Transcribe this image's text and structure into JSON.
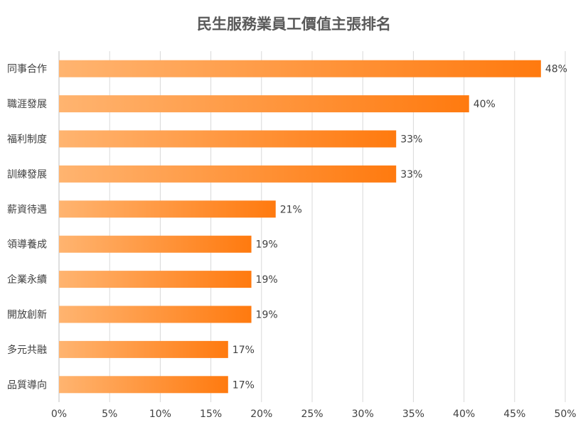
{
  "chart_data": {
    "type": "bar",
    "orientation": "horizontal",
    "title": "民生服務業員工價值主張排名",
    "xlabel": "",
    "ylabel": "",
    "categories": [
      "同事合作",
      "職涯發展",
      "福利制度",
      "訓練發展",
      "薪資待遇",
      "領導養成",
      "企業永續",
      "開放創新",
      "多元共融",
      "品質導向"
    ],
    "values": [
      48,
      40,
      33,
      33,
      21,
      19,
      19,
      19,
      17,
      17
    ],
    "bar_values_precise": [
      47.6,
      40.5,
      33.3,
      33.3,
      21.4,
      19.0,
      19.0,
      19.0,
      16.7,
      16.7
    ],
    "value_labels": [
      "48%",
      "40%",
      "33%",
      "33%",
      "21%",
      "19%",
      "19%",
      "19%",
      "17%",
      "17%"
    ],
    "xlim": [
      0,
      50
    ],
    "xticks": [
      0,
      5,
      10,
      15,
      20,
      25,
      30,
      35,
      40,
      45,
      50
    ],
    "xtick_labels": [
      "0%",
      "5%",
      "10%",
      "15%",
      "20%",
      "25%",
      "30%",
      "35%",
      "40%",
      "45%",
      "50%"
    ],
    "grid": true,
    "legend": "none",
    "colors": {
      "bar_start": "#ffb470",
      "bar_end": "#ff7a0f",
      "grid": "#d9d9d9",
      "axis": "#bfbfbf"
    }
  }
}
